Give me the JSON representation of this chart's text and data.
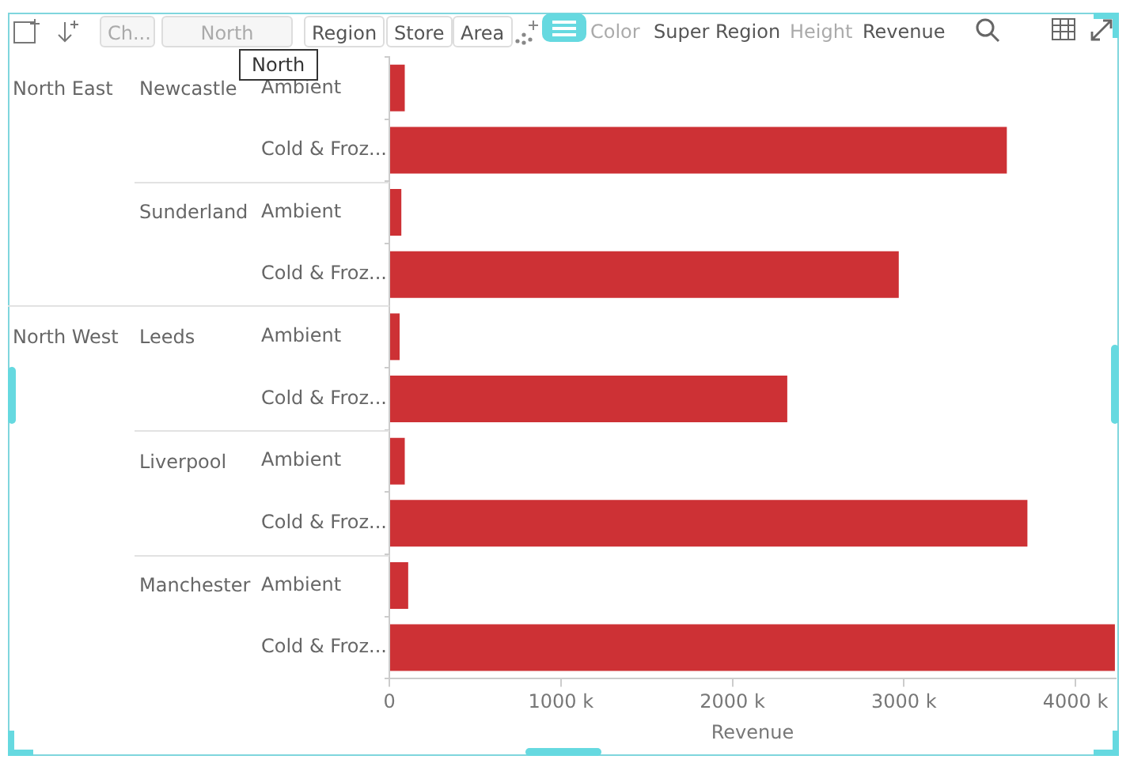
{
  "chart_data": {
    "type": "bar",
    "orientation": "horizontal",
    "categories": [
      "Ambient",
      "Cold & Froz...",
      "Ambient",
      "Cold & Froz...",
      "Ambient",
      "Cold & Froz...",
      "Ambient",
      "Cold & Froz...",
      "Ambient",
      "Cold & Froz..."
    ],
    "values": [
      90,
      3600,
      70,
      2970,
      60,
      2320,
      90,
      3720,
      110,
      4230
    ],
    "color": "#cd3135",
    "xlim": [
      0,
      4235
    ],
    "xticks": [
      0,
      {
        "value": 1000,
        "label": "1000 k"
      },
      {
        "value": 2000,
        "label": "2000 k"
      },
      {
        "value": 3000,
        "label": "3000 k"
      },
      {
        "value": 4000,
        "label": "4000 k"
      }
    ],
    "xlabel": "Revenue",
    "annotations": [
      "North East",
      "Newcastle",
      "Sunderland",
      "North West",
      "Leeds",
      "Liverpool",
      "Manchester",
      "Ch...",
      "North",
      "Region",
      "Store",
      "Area",
      "Color",
      "Super Region",
      "Height",
      "Revenue",
      "North"
    ]
  }
}
